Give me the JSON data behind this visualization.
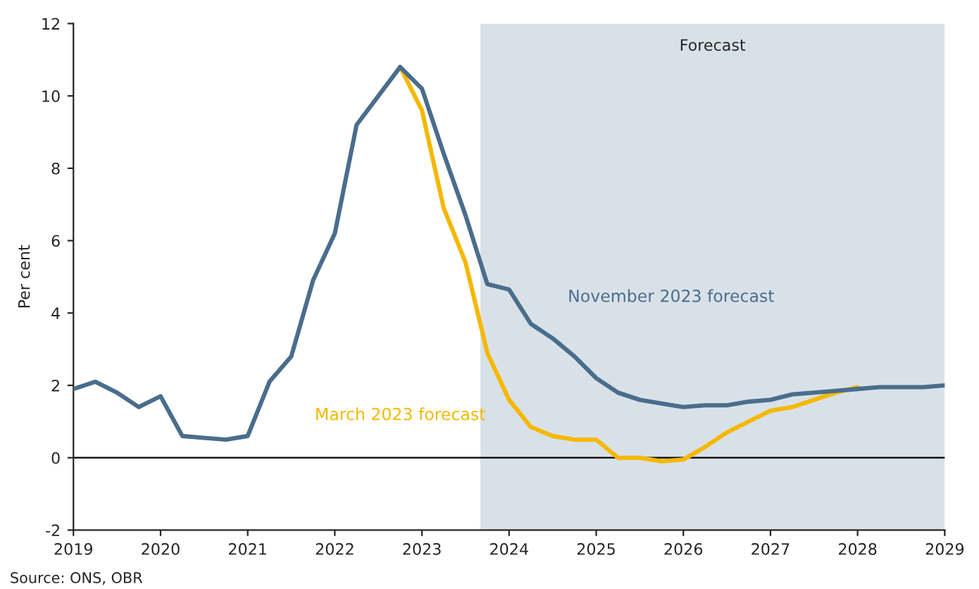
{
  "chart_data": {
    "type": "line",
    "ylabel": "Per cent",
    "xlim": [
      2019,
      2029
    ],
    "xticks": [
      2019,
      2020,
      2021,
      2022,
      2023,
      2024,
      2025,
      2026,
      2027,
      2028,
      2029
    ],
    "ylim": [
      -2,
      12
    ],
    "yticks": [
      -2,
      0,
      2,
      4,
      6,
      8,
      10,
      12
    ],
    "grid": false,
    "legend": false,
    "marker": "none",
    "line_style": "solid",
    "bands": [
      {
        "axis": "x",
        "from": 2023.67,
        "to": 2029,
        "label": "Forecast",
        "color": "#d9e1e8"
      }
    ],
    "ref_lines": [
      {
        "axis": "y",
        "value": 0,
        "color": "#000000"
      }
    ],
    "annotations": [
      "Source: ONS, OBR"
    ],
    "series": [
      {
        "name": "November 2023 forecast",
        "color": "#4a6d8c",
        "x": [
          2019,
          2019.25,
          2019.5,
          2019.75,
          2020,
          2020.25,
          2020.5,
          2020.75,
          2021,
          2021.25,
          2021.5,
          2021.75,
          2022,
          2022.25,
          2022.5,
          2022.75,
          2023,
          2023.25,
          2023.5,
          2023.75,
          2024,
          2024.25,
          2024.5,
          2024.75,
          2025,
          2025.25,
          2025.5,
          2025.75,
          2026,
          2026.25,
          2026.5,
          2026.75,
          2027,
          2027.25,
          2027.5,
          2027.75,
          2028,
          2028.25,
          2028.5,
          2028.75,
          2029
        ],
        "values": [
          1.9,
          2.1,
          1.8,
          1.4,
          1.7,
          0.6,
          0.55,
          0.5,
          0.6,
          2.1,
          2.8,
          4.9,
          6.2,
          9.2,
          10.0,
          10.8,
          10.2,
          8.4,
          6.7,
          4.8,
          4.65,
          3.7,
          3.3,
          2.8,
          2.2,
          1.8,
          1.6,
          1.5,
          1.4,
          1.45,
          1.45,
          1.55,
          1.6,
          1.75,
          1.8,
          1.85,
          1.9,
          1.95,
          1.95,
          1.95,
          2.0
        ]
      },
      {
        "name": "March 2023 forecast",
        "color": "#f5b800",
        "x": [
          2022.75,
          2023,
          2023.25,
          2023.5,
          2023.75,
          2024,
          2024.25,
          2024.5,
          2024.75,
          2025,
          2025.25,
          2025.5,
          2025.75,
          2026,
          2026.25,
          2026.5,
          2026.75,
          2027,
          2027.25,
          2027.5,
          2027.75,
          2028
        ],
        "values": [
          10.8,
          9.6,
          6.9,
          5.4,
          2.9,
          1.6,
          0.85,
          0.6,
          0.5,
          0.5,
          0.0,
          0.0,
          -0.1,
          -0.05,
          0.3,
          0.7,
          1.0,
          1.3,
          1.4,
          1.6,
          1.8,
          1.95
        ]
      }
    ]
  }
}
